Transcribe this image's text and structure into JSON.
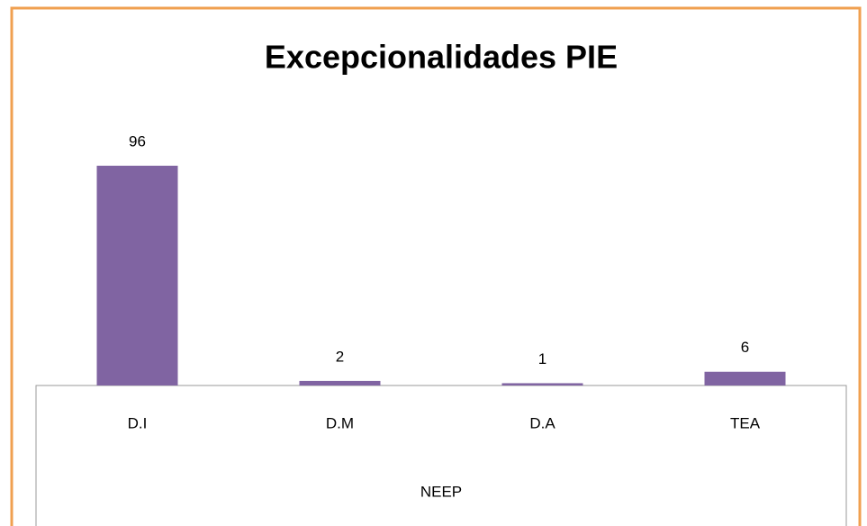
{
  "chart_data": {
    "type": "bar",
    "title": "Excepcionalidades PIE",
    "categories": [
      "D.I",
      "D.M",
      "D.A",
      "TEA"
    ],
    "values": [
      96,
      2,
      1,
      6
    ],
    "color": "#8064a2",
    "xlabel": "NEEP"
  }
}
